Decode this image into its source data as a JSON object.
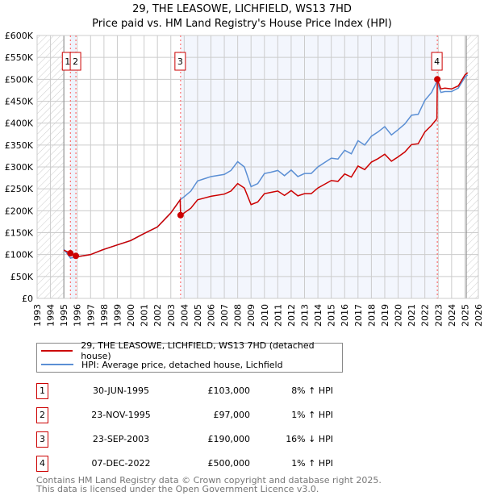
{
  "chart_data": {
    "type": "line",
    "title": "29, THE LEASOWE, LICHFIELD, WS13 7HD",
    "subtitle": "Price paid vs. HM Land Registry's House Price Index (HPI)",
    "xlim": [
      1993,
      2026
    ],
    "ylim": [
      0,
      600000
    ],
    "x_ticks": [
      "1993",
      "1994",
      "1995",
      "1996",
      "1997",
      "1998",
      "1999",
      "2000",
      "2001",
      "2002",
      "2003",
      "2004",
      "2005",
      "2006",
      "2007",
      "2008",
      "2009",
      "2010",
      "2011",
      "2012",
      "2013",
      "2014",
      "2015",
      "2016",
      "2017",
      "2018",
      "2019",
      "2020",
      "2021",
      "2022",
      "2023",
      "2024",
      "2025",
      "2026"
    ],
    "y_ticks": [
      "£0",
      "£50K",
      "£100K",
      "£150K",
      "£200K",
      "£250K",
      "£300K",
      "£350K",
      "£400K",
      "£450K",
      "£500K",
      "£550K",
      "£600K"
    ],
    "grid": true,
    "series": [
      {
        "name": "29, THE LEASOWE, LICHFIELD, WS13 7HD (detached house)",
        "color": "#cc0000",
        "x": [
          1995.0,
          1995.5,
          1995.9,
          1996,
          1997,
          1998,
          1999,
          2000,
          2001,
          2002,
          2003,
          2003.7,
          2003.73,
          2004,
          2004.5,
          2005,
          2006,
          2007,
          2007.5,
          2008,
          2008.5,
          2009,
          2009.5,
          2010,
          2010.5,
          2011,
          2011.5,
          2012,
          2012.5,
          2013,
          2013.5,
          2014,
          2015,
          2015.5,
          2016,
          2016.5,
          2017,
          2017.5,
          2018,
          2018.5,
          2019,
          2019.5,
          2020,
          2020.5,
          2021,
          2021.5,
          2022,
          2022.5,
          2022.9,
          2022.93,
          2023.2,
          2023.5,
          2024,
          2024.5,
          2025,
          2025.2
        ],
        "y": [
          110000,
          103000,
          97000,
          95000,
          100000,
          112000,
          122000,
          132000,
          148000,
          163000,
          195000,
          225000,
          190000,
          195000,
          206000,
          225000,
          233000,
          238000,
          245000,
          262000,
          252000,
          214000,
          220000,
          239000,
          242000,
          245000,
          235000,
          246000,
          234000,
          239000,
          239000,
          252000,
          269000,
          267000,
          284000,
          277000,
          302000,
          294000,
          311000,
          319000,
          329000,
          313000,
          323000,
          334000,
          351000,
          353000,
          380000,
          395000,
          410000,
          500000,
          478000,
          480000,
          478000,
          485000,
          510000,
          515000
        ]
      },
      {
        "name": "HPI: Average price, detached house, Lichfield",
        "color": "#5b8fd4",
        "x": [
          1995.0,
          1995.5,
          1996,
          1997,
          1998,
          1999,
          2000,
          2001,
          2002,
          2003,
          2003.7,
          2004,
          2004.5,
          2005,
          2006,
          2007,
          2007.5,
          2008,
          2008.5,
          2009,
          2009.5,
          2010,
          2010.5,
          2011,
          2011.5,
          2012,
          2012.5,
          2013,
          2013.5,
          2014,
          2015,
          2015.5,
          2016,
          2016.5,
          2017,
          2017.5,
          2018,
          2018.5,
          2019,
          2019.5,
          2020,
          2020.5,
          2021,
          2021.5,
          2022,
          2022.5,
          2022.9,
          2023.2,
          2023.5,
          2024,
          2024.5,
          2025,
          2025.2
        ],
        "y": [
          112000,
          92000,
          95000,
          100000,
          112000,
          122000,
          132000,
          148000,
          163000,
          195000,
          225000,
          232000,
          245000,
          268000,
          278000,
          283000,
          292000,
          312000,
          300000,
          255000,
          262000,
          285000,
          288000,
          292000,
          280000,
          293000,
          278000,
          285000,
          285000,
          300000,
          320000,
          318000,
          338000,
          330000,
          360000,
          350000,
          370000,
          380000,
          392000,
          373000,
          385000,
          398000,
          418000,
          420000,
          452000,
          470000,
          495000,
          470000,
          472000,
          472000,
          480000,
          505000,
          510000
        ]
      }
    ],
    "sales": [
      {
        "label": "1",
        "x": 1995.49,
        "y": 103000,
        "date": "30-JUN-1995",
        "price": "£103,000",
        "hpi": "8% ↑ HPI"
      },
      {
        "label": "2",
        "x": 1995.9,
        "y": 97000,
        "date": "23-NOV-1995",
        "price": "£97,000",
        "hpi": "1% ↑ HPI"
      },
      {
        "label": "3",
        "x": 2003.73,
        "y": 190000,
        "date": "23-SEP-2003",
        "price": "£190,000",
        "hpi": "16% ↓ HPI"
      },
      {
        "label": "4",
        "x": 2022.93,
        "y": 500000,
        "date": "07-DEC-2022",
        "price": "£500,000",
        "hpi": "1% ↑ HPI"
      }
    ],
    "legend_position": "below"
  },
  "footer": [
    "Contains HM Land Registry data © Crown copyright and database right 2025.",
    "This data is licensed under the Open Government Licence v3.0."
  ]
}
